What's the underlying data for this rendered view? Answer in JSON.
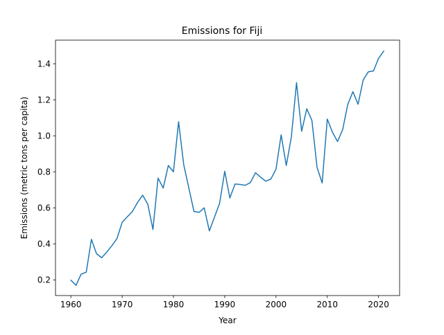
{
  "chart_data": {
    "type": "line",
    "title": "Emissions for Fiji",
    "xlabel": "Year",
    "ylabel": "Emissions (metric tons per capita)",
    "xlim": [
      1957,
      2024.1
    ],
    "ylim": [
      0.113,
      1.531
    ],
    "xticks": [
      1960,
      1970,
      1980,
      1990,
      2000,
      2010,
      2020
    ],
    "xtick_labels": [
      "1960",
      "1970",
      "1980",
      "1990",
      "2000",
      "2010",
      "2020"
    ],
    "yticks": [
      0.2,
      0.4,
      0.6,
      0.8,
      1.0,
      1.2,
      1.4
    ],
    "ytick_labels": [
      "0.2",
      "0.4",
      "0.6",
      "0.8",
      "1.0",
      "1.2",
      "1.4"
    ],
    "grid": false,
    "series": [
      {
        "color": "#1f77b4",
        "x": [
          1960,
          1961,
          1962,
          1963,
          1964,
          1965,
          1966,
          1967,
          1968,
          1969,
          1970,
          1971,
          1972,
          1973,
          1974,
          1975,
          1976,
          1977,
          1978,
          1979,
          1980,
          1981,
          1982,
          1983,
          1984,
          1985,
          1986,
          1987,
          1988,
          1989,
          1990,
          1991,
          1992,
          1993,
          1994,
          1995,
          1996,
          1997,
          1998,
          1999,
          2000,
          2001,
          2002,
          2003,
          2004,
          2005,
          2006,
          2007,
          2008,
          2009,
          2010,
          2011,
          2012,
          2013,
          2014,
          2015,
          2016,
          2017,
          2018,
          2019,
          2020,
          2021
        ],
        "y": [
          0.198,
          0.17,
          0.232,
          0.243,
          0.425,
          0.345,
          0.323,
          0.354,
          0.39,
          0.43,
          0.52,
          0.55,
          0.58,
          0.63,
          0.67,
          0.62,
          0.48,
          0.765,
          0.71,
          0.835,
          0.8,
          1.078,
          0.84,
          0.71,
          0.58,
          0.575,
          0.6,
          0.472,
          0.548,
          0.625,
          0.803,
          0.655,
          0.732,
          0.73,
          0.725,
          0.74,
          0.795,
          0.77,
          0.748,
          0.76,
          0.815,
          1.005,
          0.835,
          0.995,
          1.295,
          1.025,
          1.15,
          1.085,
          0.825,
          0.738,
          1.093,
          1.02,
          0.968,
          1.035,
          1.175,
          1.245,
          1.175,
          1.31,
          1.355,
          1.36,
          1.43,
          1.47
        ]
      }
    ]
  }
}
